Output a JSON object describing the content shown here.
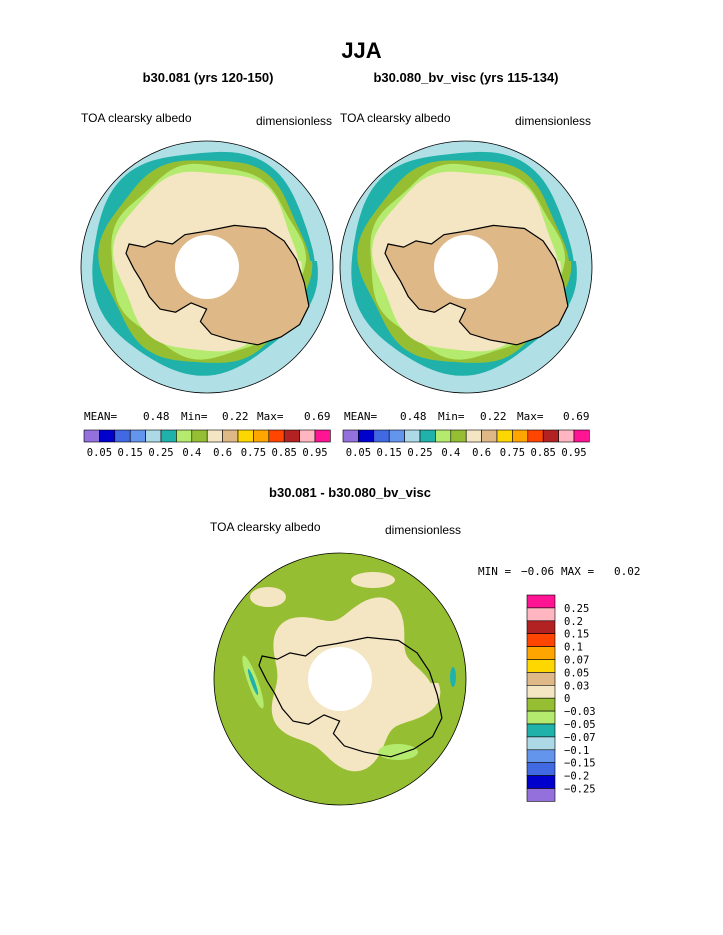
{
  "figure": {
    "title": "JJA",
    "panel_left": {
      "subtitle": "b30.081 (yrs 120-150)",
      "field_label": "TOA clearsky albedo",
      "units": "dimensionless",
      "mean_label": "MEAN=",
      "mean_value": "0.48",
      "min_label": "Min=",
      "min_value": "0.22",
      "max_label": "Max=",
      "max_value": "0.69"
    },
    "panel_right": {
      "subtitle": "b30.080_bv_visc (yrs 115-134)",
      "field_label": "TOA clearsky albedo",
      "units": "dimensionless",
      "mean_label": "MEAN=",
      "mean_value": "0.48",
      "min_label": "Min=",
      "min_value": "0.22",
      "max_label": "Max=",
      "max_value": "0.69"
    },
    "panel_diff": {
      "subtitle": "b30.081 - b30.080_bv_visc",
      "field_label": "TOA clearsky albedo",
      "units": "dimensionless",
      "min_label": "MIN =",
      "min_value": "−0.06",
      "max_label": "MAX =",
      "max_value": "0.02"
    }
  },
  "chart_data": [
    {
      "type": "heatmap",
      "projection": "south-polar-stereographic",
      "title": "b30.081 (yrs 120-150)",
      "variable": "TOA clearsky albedo",
      "units": "dimensionless",
      "mean": 0.48,
      "min": 0.22,
      "max": 0.69,
      "colorbar": {
        "orientation": "horizontal",
        "colors": [
          "#9370db",
          "#0000cd",
          "#4169e1",
          "#6495ed",
          "#add8e6",
          "#20b2aa",
          "#b4eb6e",
          "#96be32",
          "#f5e6c3",
          "#deb887",
          "#ffd700",
          "#ffa500",
          "#ff4500",
          "#b22222",
          "#ffb6c1",
          "#ff1493"
        ],
        "tick_labels": [
          "0.05",
          "0.15",
          "0.25",
          "0.4",
          "0.6",
          "0.75",
          "0.85",
          "0.95"
        ],
        "boundaries": [
          0.05,
          0.1,
          0.15,
          0.2,
          0.25,
          0.3,
          0.35,
          0.4,
          0.5,
          0.6,
          0.65,
          0.7,
          0.75,
          0.8,
          0.85,
          0.9,
          0.95
        ]
      }
    },
    {
      "type": "heatmap",
      "projection": "south-polar-stereographic",
      "title": "b30.080_bv_visc (yrs 115-134)",
      "variable": "TOA clearsky albedo",
      "units": "dimensionless",
      "mean": 0.48,
      "min": 0.22,
      "max": 0.69,
      "colorbar": {
        "orientation": "horizontal",
        "colors": [
          "#9370db",
          "#0000cd",
          "#4169e1",
          "#6495ed",
          "#add8e6",
          "#20b2aa",
          "#b4eb6e",
          "#96be32",
          "#f5e6c3",
          "#deb887",
          "#ffd700",
          "#ffa500",
          "#ff4500",
          "#b22222",
          "#ffb6c1",
          "#ff1493"
        ],
        "tick_labels": [
          "0.05",
          "0.15",
          "0.25",
          "0.4",
          "0.6",
          "0.75",
          "0.85",
          "0.95"
        ],
        "boundaries": [
          0.05,
          0.1,
          0.15,
          0.2,
          0.25,
          0.3,
          0.35,
          0.4,
          0.5,
          0.6,
          0.65,
          0.7,
          0.75,
          0.8,
          0.85,
          0.9,
          0.95
        ]
      }
    },
    {
      "type": "heatmap",
      "projection": "south-polar-stereographic",
      "title": "b30.081 - b30.080_bv_visc",
      "variable": "TOA clearsky albedo",
      "units": "dimensionless",
      "min": -0.06,
      "max": 0.02,
      "colorbar": {
        "orientation": "vertical",
        "colors_top_to_bottom": [
          "#ff1493",
          "#ffb6c1",
          "#b22222",
          "#ff4500",
          "#ffa500",
          "#ffd700",
          "#deb887",
          "#f5e6c3",
          "#96be32",
          "#b4eb6e",
          "#20b2aa",
          "#add8e6",
          "#6495ed",
          "#4169e1",
          "#0000cd",
          "#9370db"
        ],
        "tick_labels": [
          "0.25",
          "0.2",
          "0.15",
          "0.1",
          "0.07",
          "0.05",
          "0.03",
          "0",
          "−0.03",
          "−0.05",
          "−0.07",
          "−0.1",
          "−0.15",
          "−0.2",
          "−0.25"
        ]
      }
    }
  ],
  "colors": {
    "coast": "#000000",
    "ocean_light": "#b0e0e6",
    "teal": "#20b2aa",
    "green": "#96be32",
    "lightgreen": "#b4eb6e",
    "cream": "#f5e6c3",
    "tan": "#deb887"
  }
}
